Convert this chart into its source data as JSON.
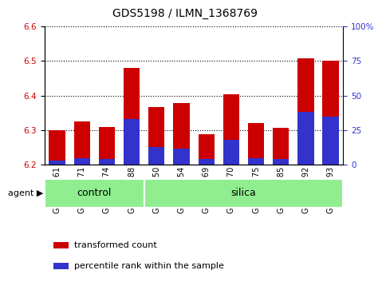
{
  "title": "GDS5198 / ILMN_1368769",
  "samples": [
    "GSM665761",
    "GSM665771",
    "GSM665774",
    "GSM665788",
    "GSM665750",
    "GSM665754",
    "GSM665769",
    "GSM665770",
    "GSM665775",
    "GSM665785",
    "GSM665792",
    "GSM665793"
  ],
  "groups": [
    "control",
    "control",
    "control",
    "control",
    "silica",
    "silica",
    "silica",
    "silica",
    "silica",
    "silica",
    "silica",
    "silica"
  ],
  "bar_tops": [
    6.3,
    6.325,
    6.31,
    6.48,
    6.368,
    6.378,
    6.288,
    6.405,
    6.32,
    6.308,
    6.508,
    6.5
  ],
  "blue_pct": [
    3,
    5,
    4,
    33,
    13,
    12,
    4,
    18,
    5,
    4,
    38,
    35
  ],
  "bar_bottom": 6.2,
  "ylim_left": [
    6.2,
    6.6
  ],
  "ylim_right": [
    0,
    100
  ],
  "yticks_left": [
    6.2,
    6.3,
    6.4,
    6.5,
    6.6
  ],
  "yticks_right": [
    0,
    25,
    50,
    75,
    100
  ],
  "ytick_right_labels": [
    "0",
    "25",
    "50",
    "75",
    "100%"
  ],
  "bar_color": "#cc0000",
  "blue_color": "#3333cc",
  "bar_width": 0.65,
  "group_color": "#90ee90",
  "legend_red_label": "transformed count",
  "legend_blue_label": "percentile rank within the sample",
  "title_fontsize": 10,
  "tick_fontsize": 7.5,
  "group_fontsize": 9
}
